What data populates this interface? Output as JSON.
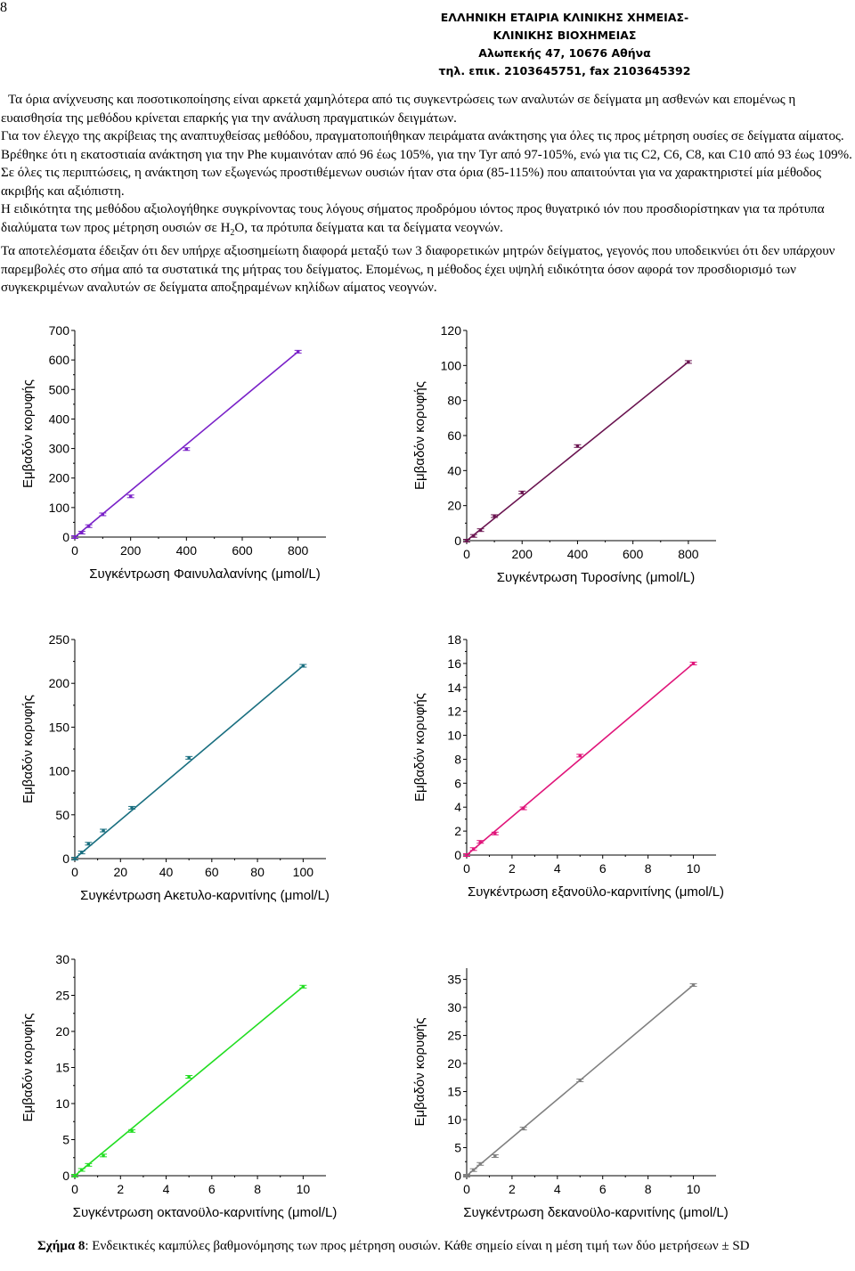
{
  "page_number": "8",
  "header": {
    "line1": "ΕΛΛΗΝΙΚΗ ΕΤΑΙΡΙΑ ΚΛΙΝΙΚΗΣ ΧΗΜΕΙΑΣ-",
    "line2": "ΚΛΙΝΙΚΗΣ ΒΙΟΧΗΜΕΙΑΣ",
    "line3": "Αλωπεκής 47, 10676 Αθήνα",
    "line4": "τηλ. επικ. 2103645751, fax 2103645392"
  },
  "body": {
    "p1": "Τα όρια ανίχνευσης και ποσοτικοποίησης είναι αρκετά χαμηλότερα από τις συγκεντρώσεις των αναλυτών σε δείγματα μη ασθενών και επομένως η ευαισθησία της μεθόδου κρίνεται επαρκής για την ανάλυση πραγματικών δειγμάτων.",
    "p2": "Για τον έλεγχο της ακρίβειας της αναπτυχθείσας μεθόδου, πραγματοποιήθηκαν πειράματα ανάκτησης για όλες τις προς μέτρηση ουσίες σε δείγματα αίματος. Βρέθηκε ότι η εκατοστιαία ανάκτηση για την Phe κυμαινόταν από 96 έως 105%, για την Tyr από 97-105%, ενώ για τις C2, C6, C8, και C10 από 93 έως 109%. Σε όλες τις περιπτώσεις, η ανάκτηση των εξωγενώς προστιθέμενων ουσιών ήταν στα όρια (85-115%) που απαιτούνται για να χαρακτηριστεί μία μέθοδος ακριβής και αξιόπιστη.",
    "p3_a": "Η ειδικότητα της μεθόδου αξιολογήθηκε συγκρίνοντας τους λόγους σήματος προδρόμου ιόντος προς θυγατρικό ιόν που προσδιορίστηκαν για τα πρότυπα διαλύματα των προς μέτρηση ουσιών σε H",
    "p3_sub": "2",
    "p3_b": "O, τα πρότυπα δείγματα και τα δείγματα νεογνών.",
    "p4": "Τα αποτελέσματα έδειξαν ότι δεν υπήρχε αξιοσημείωτη διαφορά μεταξύ των 3 διαφορετικών μητρών δείγματος, γεγονός που υποδεικνύει ότι δεν υπάρχουν παρεμβολές στο σήμα από τα συστατικά της μήτρας του δείγματος. Επομένως, η μέθοδος έχει υψηλή ειδικότητα όσον αφορά τον προσδιορισμό των συγκεκριμένων αναλυτών σε δείγματα αποξηραμένων κηλίδων αίματος νεογνών."
  },
  "caption": {
    "label": "Σχήμα 8",
    "text": ": Ενδεικτικές καμπύλες βαθμονόμησης των προς μέτρηση ουσιών. Κάθε σημείο είναι η μέση τιμή των δύο μετρήσεων ± SD"
  },
  "chart_data": [
    {
      "type": "scatter",
      "title": "",
      "xlabel": "Συγκέντρωση Φαινυλαλανίνης (μmol/L)",
      "ylabel": "Εμβαδόν κορυφής",
      "xlim": [
        0,
        900
      ],
      "ylim": [
        0,
        700
      ],
      "xticks": [
        0,
        200,
        400,
        600,
        800
      ],
      "yticks": [
        0,
        100,
        200,
        300,
        400,
        500,
        600,
        700
      ],
      "color": "#7a22c8",
      "x": [
        0,
        25,
        50,
        100,
        200,
        400,
        800
      ],
      "y": [
        0,
        15,
        37,
        77,
        138,
        298,
        628
      ],
      "fit_line": [
        [
          0,
          0
        ],
        [
          800,
          628
        ]
      ]
    },
    {
      "type": "scatter",
      "title": "",
      "xlabel": "Συγκέντρωση Τυροσίνης (μmol/L)",
      "ylabel": "Εμβαδόν κορυφής",
      "xlim": [
        0,
        900
      ],
      "ylim": [
        0,
        120
      ],
      "xticks": [
        0,
        200,
        400,
        600,
        800
      ],
      "yticks": [
        0,
        20,
        40,
        60,
        80,
        100,
        120
      ],
      "color": "#6a1450",
      "x": [
        0,
        25,
        50,
        100,
        200,
        400,
        800
      ],
      "y": [
        0,
        2.7,
        6,
        14,
        27.5,
        54,
        102
      ],
      "fit_line": [
        [
          0,
          0
        ],
        [
          800,
          102
        ]
      ]
    },
    {
      "type": "scatter",
      "title": "",
      "xlabel": "Συγκέντρωση Ακετυλο-καρνιτίνης (μmol/L)",
      "ylabel": "Εμβαδόν κορυφής",
      "xlim": [
        0,
        110
      ],
      "ylim": [
        0,
        250
      ],
      "xticks": [
        0,
        20,
        40,
        60,
        80,
        100
      ],
      "yticks": [
        0,
        50,
        100,
        150,
        200,
        250
      ],
      "color": "#1a6f80",
      "x": [
        0,
        3,
        6,
        12.5,
        25,
        50,
        100
      ],
      "y": [
        0,
        7,
        17,
        32,
        58,
        115,
        220
      ],
      "fit_line": [
        [
          0,
          0
        ],
        [
          100,
          220
        ]
      ]
    },
    {
      "type": "scatter",
      "title": "",
      "xlabel": "Συγκέντρωση εξανοϋλο-καρνιτίνης (μmol/L)",
      "ylabel": "Εμβαδόν κορυφής",
      "xlim": [
        0,
        11
      ],
      "ylim": [
        0,
        18
      ],
      "xticks": [
        0,
        2,
        4,
        6,
        8,
        10
      ],
      "yticks": [
        0,
        2,
        4,
        6,
        8,
        10,
        12,
        14,
        16,
        18
      ],
      "color": "#e0157a",
      "x": [
        0,
        0.3,
        0.6,
        1.25,
        2.5,
        5,
        10
      ],
      "y": [
        0,
        0.5,
        1.1,
        1.8,
        3.9,
        8.3,
        16.0
      ],
      "fit_line": [
        [
          0,
          0
        ],
        [
          10,
          16.0
        ]
      ]
    },
    {
      "type": "scatter",
      "title": "",
      "xlabel": "Συγκέντρωση οκτανοϋλο-καρνιτίνης (μmol/L)",
      "ylabel": "Εμβαδόν κορυφής",
      "xlim": [
        0,
        11
      ],
      "ylim": [
        0,
        30
      ],
      "xticks": [
        0,
        2,
        4,
        6,
        8,
        10
      ],
      "yticks": [
        0,
        5,
        10,
        15,
        20,
        25,
        30
      ],
      "color": "#22dd22",
      "x": [
        0,
        0.3,
        0.6,
        1.25,
        2.5,
        5,
        10
      ],
      "y": [
        0,
        0.8,
        1.5,
        2.8,
        6.2,
        13.7,
        26.2
      ],
      "fit_line": [
        [
          0,
          0
        ],
        [
          10,
          26.2
        ]
      ]
    },
    {
      "type": "scatter",
      "title": "",
      "xlabel": "Συγκέντρωση δεκανοϋλο-καρνιτίνης (μmol/L)",
      "ylabel": "Εμβαδόν κορυφής",
      "xlim": [
        0,
        11
      ],
      "ylim": [
        0,
        37
      ],
      "xticks": [
        0,
        2,
        4,
        6,
        8,
        10
      ],
      "yticks": [
        0,
        5,
        10,
        15,
        20,
        25,
        30,
        35
      ],
      "color": "#808080",
      "x": [
        0,
        0.3,
        0.6,
        1.25,
        2.5,
        5,
        10
      ],
      "y": [
        0,
        1.0,
        2.1,
        3.5,
        8.4,
        17.0,
        34.0
      ],
      "fit_line": [
        [
          0,
          0
        ],
        [
          10,
          34.0
        ]
      ]
    }
  ]
}
